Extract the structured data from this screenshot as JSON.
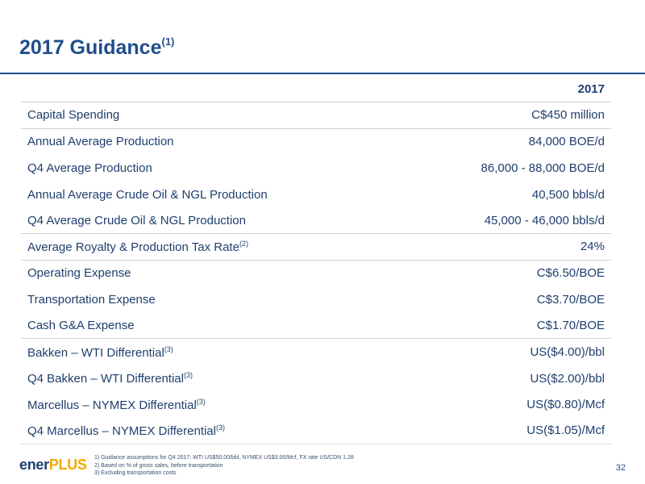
{
  "title": {
    "text": "2017 Guidance",
    "sup": "(1)"
  },
  "table": {
    "year_header": "2017",
    "rows": [
      {
        "label": "Capital Spending",
        "sup": "",
        "value": "C$450 million"
      },
      {
        "label": "Annual Average Production",
        "sup": "",
        "value": "84,000 BOE/d"
      },
      {
        "label": "Q4 Average Production",
        "sup": "",
        "value": "86,000 - 88,000 BOE/d"
      },
      {
        "label": "Annual Average Crude Oil & NGL Production",
        "sup": "",
        "value": "40,500 bbls/d"
      },
      {
        "label": "Q4 Average Crude Oil & NGL Production",
        "sup": "",
        "value": "45,000 - 46,000 bbls/d"
      },
      {
        "label": "Average Royalty & Production Tax Rate",
        "sup": "(2)",
        "value": "24%"
      },
      {
        "label": "Operating Expense",
        "sup": "",
        "value": "C$6.50/BOE"
      },
      {
        "label": "Transportation Expense",
        "sup": "",
        "value": "C$3.70/BOE"
      },
      {
        "label": "Cash G&A Expense",
        "sup": "",
        "value": "C$1.70/BOE"
      },
      {
        "label": "Bakken – WTI Differential",
        "sup": "(3)",
        "value": "US($4.00)/bbl"
      },
      {
        "label": "Q4 Bakken – WTI Differential",
        "sup": "(3)",
        "value": "US($2.00)/bbl"
      },
      {
        "label": "Marcellus – NYMEX Differential",
        "sup": "(3)",
        "value": "US($0.80)/Mcf"
      },
      {
        "label": "Q4 Marcellus – NYMEX Differential",
        "sup": "(3)",
        "value": "US($1.05)/Mcf"
      }
    ]
  },
  "footer": {
    "logo_part1": "ener",
    "logo_part2": "PLUS",
    "notes": [
      "1)  Guidance assumptions for Q4 2017: WTI US$50.00/bbl, NYMEX US$3.00/Mcf, FX rate US/CDN 1.28",
      "2)  Based on % of gross sales, before transportation",
      "3)  Excluding transportation costs"
    ],
    "page_number": "32"
  }
}
